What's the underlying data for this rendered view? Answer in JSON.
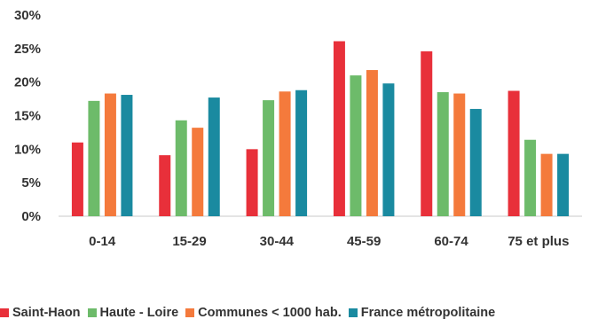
{
  "chart_data": {
    "type": "bar",
    "categories": [
      "0-14",
      "15-29",
      "30-44",
      "45-59",
      "60-74",
      "75 et plus"
    ],
    "series": [
      {
        "name": "Saint-Haon",
        "color": "#e8303a",
        "values": [
          11.0,
          9.1,
          10.0,
          26.1,
          24.6,
          18.7
        ]
      },
      {
        "name": "Haute - Loire",
        "color": "#6dbb6a",
        "values": [
          17.2,
          14.3,
          17.3,
          21.0,
          18.5,
          11.4
        ]
      },
      {
        "name": "Communes < 1000 hab.",
        "color": "#f47a3c",
        "values": [
          18.3,
          13.2,
          18.6,
          21.8,
          18.3,
          9.3
        ]
      },
      {
        "name": "France métropolitaine",
        "color": "#1a8aa0",
        "values": [
          18.1,
          17.7,
          18.8,
          19.8,
          16.0,
          9.3
        ]
      }
    ],
    "yticks": [
      "0%",
      "5%",
      "10%",
      "15%",
      "20%",
      "25%",
      "30%"
    ],
    "ylim": [
      0,
      30
    ],
    "grid": false,
    "legend_position": "bottom",
    "title": "",
    "xlabel": "",
    "ylabel": ""
  }
}
